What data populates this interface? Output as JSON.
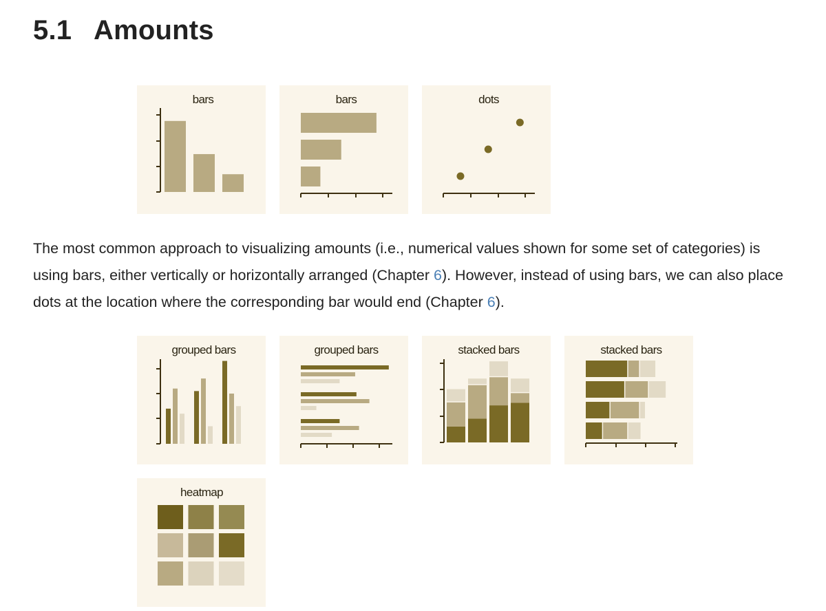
{
  "section": {
    "number": "5.1",
    "title": "Amounts"
  },
  "paragraph": {
    "p1": "The most common approach to visualizing amounts (i.e., numerical values shown for some set of categories) is using bars, either vertically or horizontally arranged (Chapter ",
    "link1": "6",
    "p2": "). However, instead of using bars, we can also place dots at the location where the corresponding bar would end (Chapter ",
    "link2": "6",
    "p3": ")."
  },
  "colors": {
    "dark": "#7a6a26",
    "mid": "#b8aa82",
    "light": "#e2dac6",
    "panel_bg": "#faf5ea",
    "axis": "#3d3010",
    "heat": [
      "#6e5e1c",
      "#8e8148",
      "#958a52",
      "#c7b99a",
      "#aa9c74",
      "#7a6a26",
      "#b8aa82",
      "#dcd3bd",
      "#e4dcc9"
    ]
  },
  "chart_data": [
    {
      "type": "bar",
      "title": "bars",
      "orientation": "vertical",
      "values": [
        3,
        1.6,
        0.75
      ]
    },
    {
      "type": "bar",
      "title": "bars",
      "orientation": "horizontal",
      "values": [
        2.9,
        1.55,
        0.75
      ]
    },
    {
      "type": "scatter",
      "title": "dots",
      "values": [
        0.65,
        1.7,
        2.9
      ]
    },
    {
      "type": "bar",
      "title": "grouped bars",
      "orientation": "vertical",
      "series": [
        {
          "values": [
            1.4,
            2.1,
            3.3
          ]
        },
        {
          "values": [
            2.2,
            2.6,
            2.0
          ]
        },
        {
          "values": [
            1.2,
            0.7,
            1.5
          ]
        }
      ]
    },
    {
      "type": "bar",
      "title": "grouped bars",
      "orientation": "horizontal",
      "series": [
        {
          "values": [
            3.4,
            2.15,
            1.5
          ]
        },
        {
          "values": [
            2.1,
            2.65,
            2.25
          ]
        },
        {
          "values": [
            1.5,
            0.6,
            1.2
          ]
        }
      ]
    },
    {
      "type": "bar",
      "title": "stacked bars",
      "orientation": "vertical",
      "series": [
        {
          "values": [
            0.6,
            0.9,
            1.4,
            1.5
          ]
        },
        {
          "values": [
            0.95,
            1.3,
            1.1,
            0.4
          ]
        },
        {
          "values": [
            0.5,
            0.25,
            0.6,
            0.55
          ]
        }
      ]
    },
    {
      "type": "bar",
      "title": "stacked bars",
      "orientation": "horizontal",
      "series": [
        {
          "values": [
            1.4,
            1.3,
            0.8,
            0.55
          ]
        },
        {
          "values": [
            0.4,
            0.8,
            1.0,
            0.85
          ]
        },
        {
          "values": [
            0.55,
            0.6,
            0.2,
            0.45
          ]
        }
      ]
    },
    {
      "type": "heatmap",
      "title": "heatmap",
      "rows": 3,
      "cols": 3,
      "levels": [
        0.95,
        0.7,
        0.68,
        0.3,
        0.5,
        0.9,
        0.4,
        0.2,
        0.15
      ]
    }
  ]
}
